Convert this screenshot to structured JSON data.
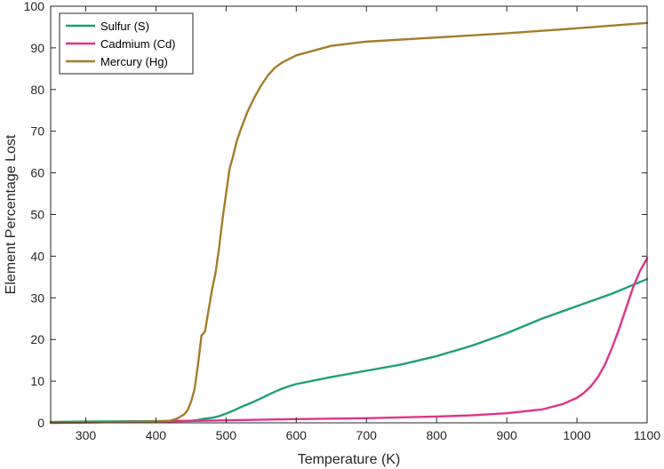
{
  "chart_data": {
    "type": "line",
    "xlabel": "Temperature (K)",
    "ylabel": "Element Percentage Lost",
    "xlim": [
      250,
      1100
    ],
    "ylim": [
      0,
      100
    ],
    "xticks": [
      300,
      400,
      500,
      600,
      700,
      800,
      900,
      1000,
      1100
    ],
    "yticks": [
      0,
      10,
      20,
      30,
      40,
      50,
      60,
      70,
      80,
      90,
      100
    ],
    "grid": false,
    "legend_position": "top-left",
    "series": [
      {
        "name": "Sulfur (S)",
        "color": "#1f9e78",
        "x": [
          250,
          300,
          350,
          400,
          450,
          460,
          470,
          480,
          490,
          500,
          510,
          520,
          530,
          540,
          550,
          560,
          570,
          580,
          590,
          600,
          650,
          700,
          750,
          800,
          850,
          900,
          950,
          1000,
          1050,
          1100
        ],
        "y": [
          0.2,
          0.3,
          0.35,
          0.4,
          0.5,
          0.7,
          1.0,
          1.2,
          1.6,
          2.2,
          2.9,
          3.7,
          4.4,
          5.1,
          5.9,
          6.7,
          7.5,
          8.2,
          8.8,
          9.3,
          11.0,
          12.5,
          14.0,
          16.0,
          18.5,
          21.5,
          25.0,
          28.0,
          31.0,
          34.5
        ]
      },
      {
        "name": "Cadmium (Cd)",
        "color": "#e0338a",
        "x": [
          250,
          300,
          400,
          500,
          600,
          700,
          800,
          850,
          900,
          950,
          980,
          1000,
          1010,
          1020,
          1030,
          1040,
          1050,
          1060,
          1070,
          1080,
          1090,
          1100
        ],
        "y": [
          0.0,
          0.1,
          0.3,
          0.6,
          0.9,
          1.1,
          1.5,
          1.8,
          2.3,
          3.2,
          4.5,
          6.0,
          7.2,
          8.8,
          11.0,
          14.0,
          18.0,
          22.5,
          27.5,
          32.5,
          36.5,
          39.5
        ]
      },
      {
        "name": "Mercury (Hg)",
        "color": "#a47d2a",
        "x": [
          250,
          400,
          420,
          430,
          440,
          445,
          450,
          455,
          460,
          465,
          468,
          470,
          475,
          480,
          485,
          490,
          495,
          500,
          505,
          510,
          515,
          520,
          530,
          540,
          550,
          560,
          570,
          580,
          600,
          650,
          700,
          800,
          900,
          1000,
          1100
        ],
        "y": [
          0.0,
          0.3,
          0.5,
          1.0,
          2.0,
          3.0,
          5.0,
          8.0,
          14.0,
          21.0,
          21.5,
          22.0,
          27.0,
          32.0,
          36.0,
          42.0,
          49.0,
          55.0,
          61.0,
          64.0,
          67.5,
          70.0,
          74.5,
          78.0,
          81.0,
          83.5,
          85.3,
          86.5,
          88.2,
          90.5,
          91.5,
          92.5,
          93.5,
          94.7,
          96.0
        ]
      }
    ]
  }
}
